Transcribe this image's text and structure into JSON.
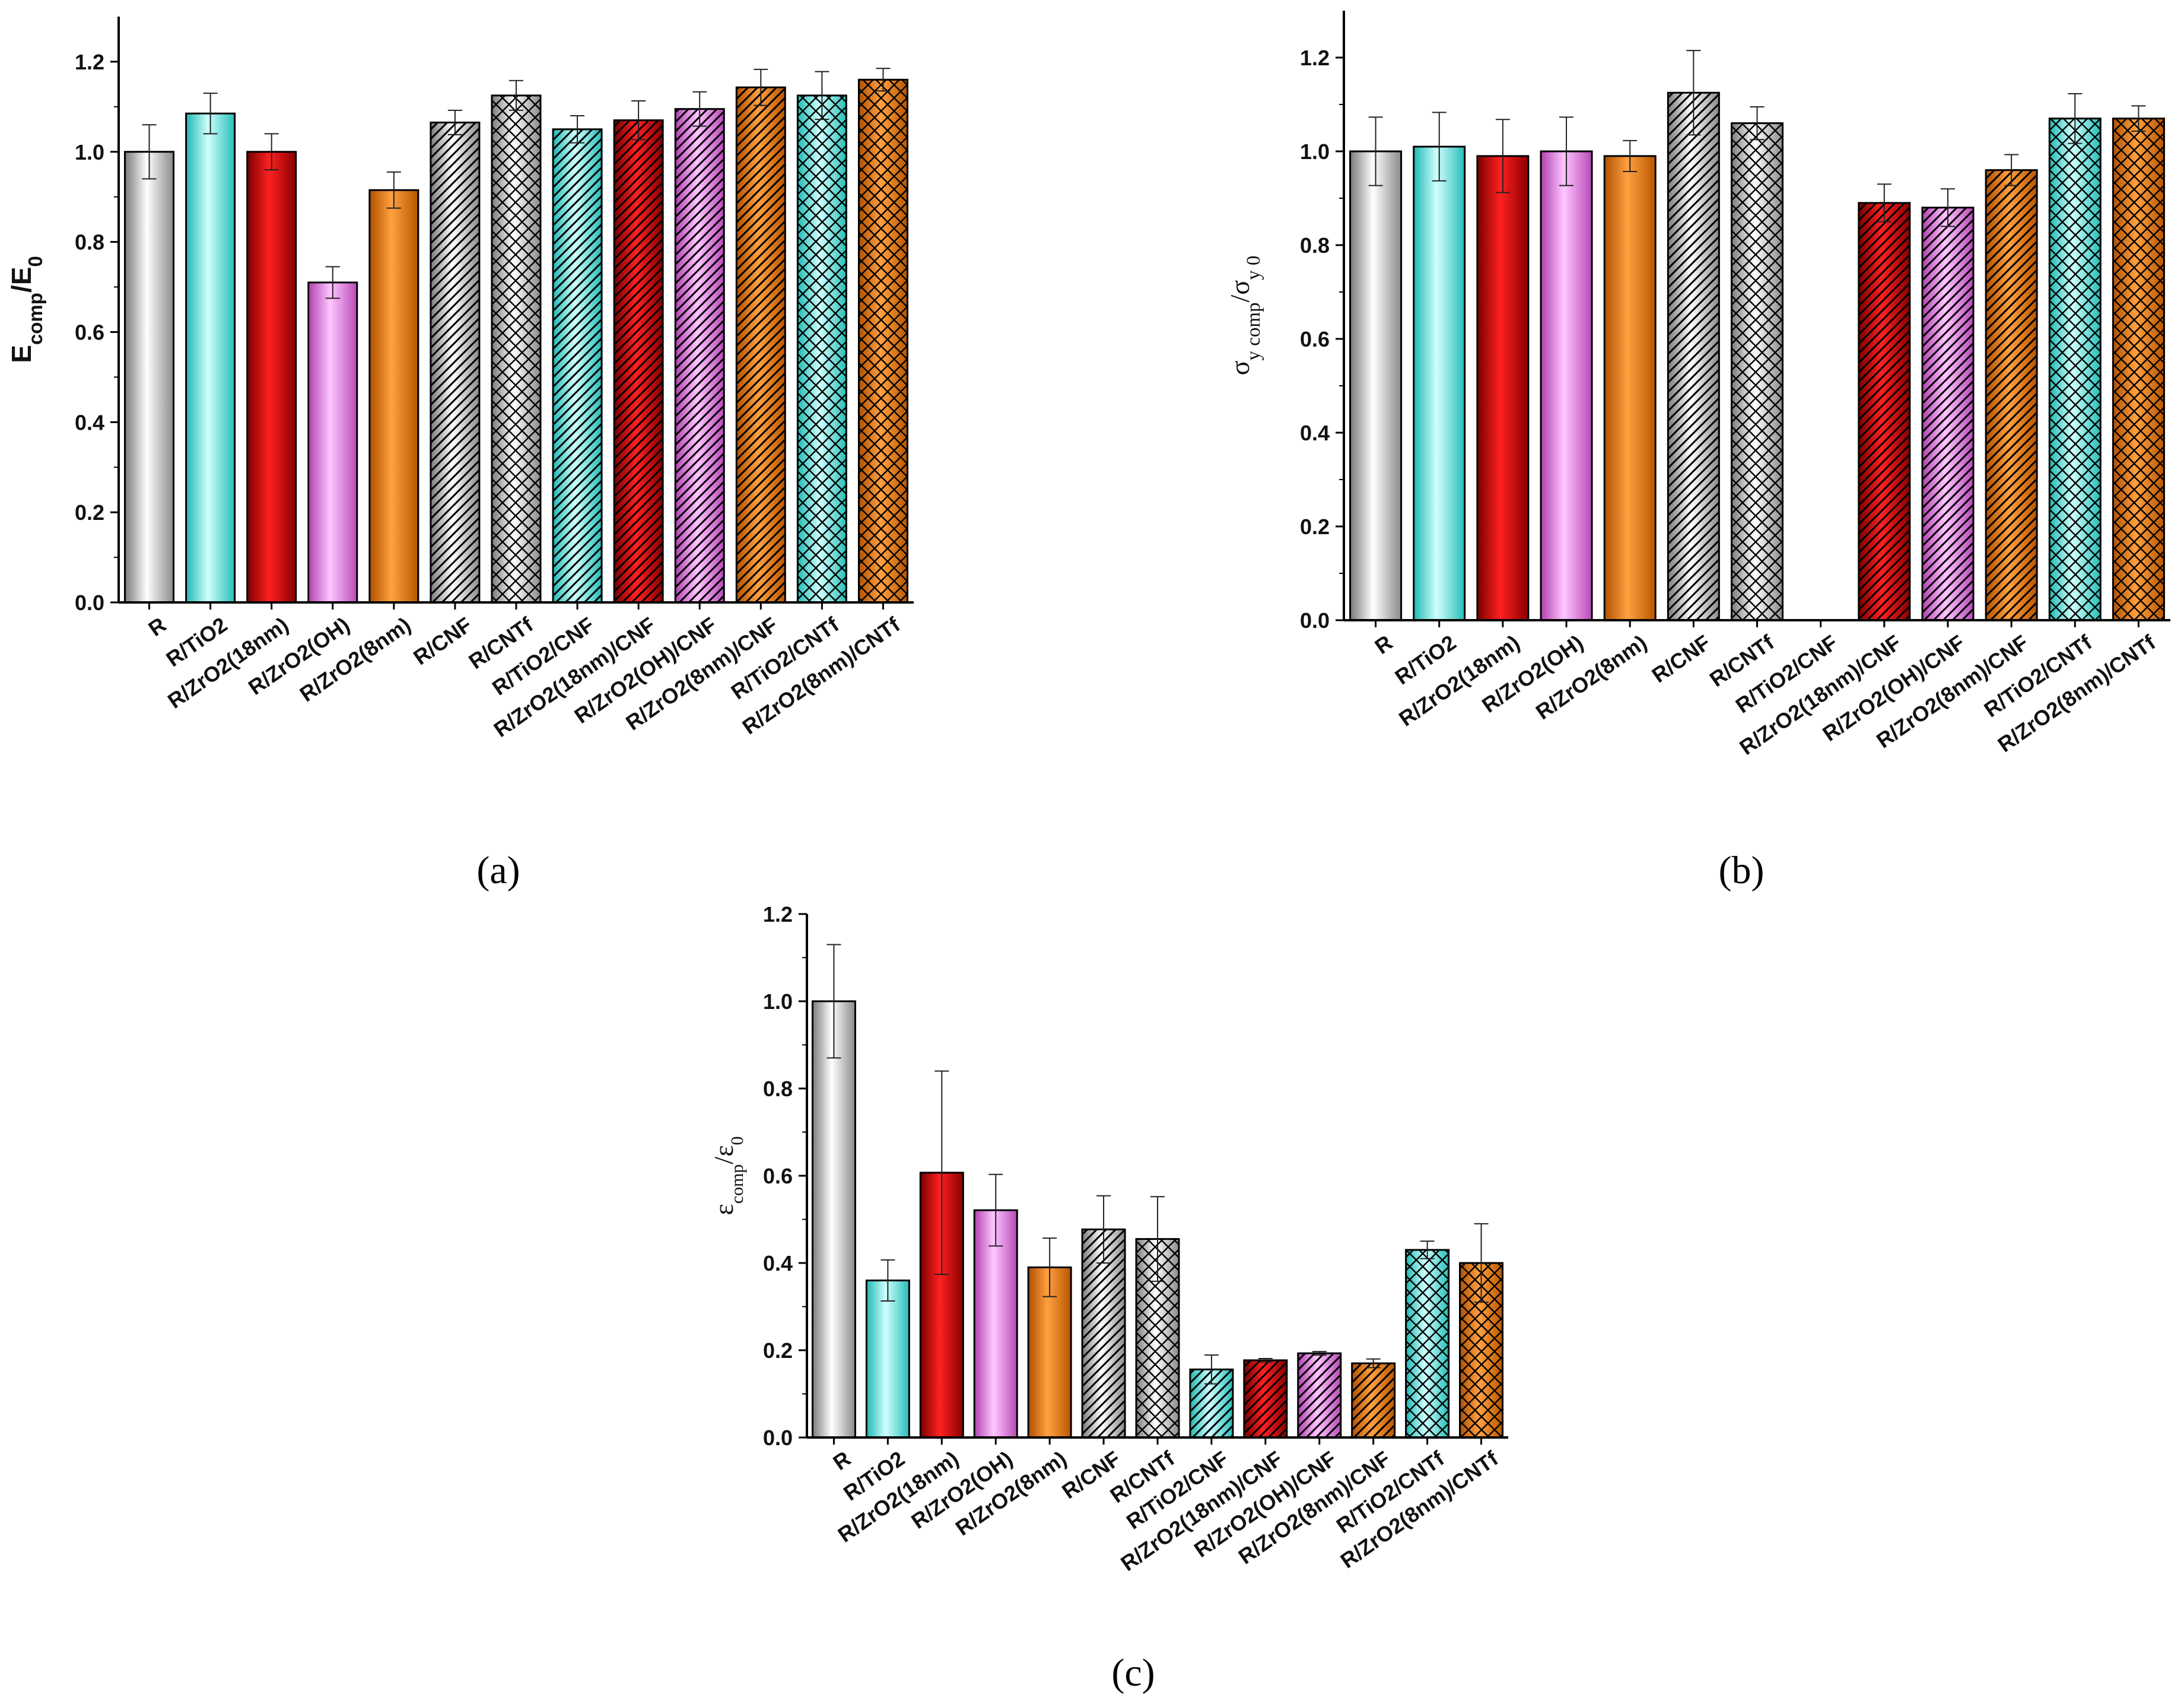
{
  "colors": {
    "white": "#ffffff",
    "cyan": "#5ff2ee",
    "red": "#ee0000",
    "magenta": "#f37ff3",
    "orange": "#ff7f08",
    "axis": "#000000",
    "error": "#222222"
  },
  "chart_data": [
    {
      "id": "a",
      "type": "bar",
      "caption": "(a)",
      "title": "",
      "ylabel": {
        "main": "E",
        "sub": "comp",
        "sep": "/E",
        "sub2": "0"
      },
      "xlabel": "",
      "ylim": [
        0,
        1.3
      ],
      "yticks": [
        "0.0",
        "0.2",
        "0.4",
        "0.6",
        "0.8",
        "1.0",
        "1.2"
      ],
      "grid": false,
      "categories": [
        "R",
        "R/TiO2",
        "R/ZrO2(18nm)",
        "R/ZrO2(OH)",
        "R/ZrO2(8nm)",
        "R/CNF",
        "R/CNTf",
        "R/TiO2/CNF",
        "R/ZrO2(18nm)/CNF",
        "R/ZrO2(OH)/CNF",
        "R/ZrO2(8nm)/CNF",
        "R/TiO2/CNTf",
        "R/ZrO2(8nm)/CNTf"
      ],
      "values": [
        1.0,
        1.085,
        1.0,
        0.71,
        0.915,
        1.065,
        1.125,
        1.05,
        1.07,
        1.095,
        1.143,
        1.125,
        1.16
      ],
      "errors": [
        0.06,
        0.045,
        0.04,
        0.035,
        0.04,
        0.027,
        0.033,
        0.03,
        0.043,
        0.038,
        0.04,
        0.053,
        0.025
      ],
      "fills": [
        "white",
        "cyan",
        "red",
        "magenta",
        "orange",
        "white",
        "white",
        "cyan",
        "red",
        "magenta",
        "orange",
        "cyan",
        "orange"
      ],
      "patterns": [
        "none",
        "none",
        "none",
        "none",
        "none",
        "hatch",
        "cross",
        "hatch",
        "hatch",
        "hatch",
        "hatch",
        "cross",
        "cross"
      ]
    },
    {
      "id": "b",
      "type": "bar",
      "caption": "(b)",
      "title": "",
      "ylabel": {
        "main": "σ",
        "sub": "y comp",
        "sep": "/σ",
        "sub2": "y 0"
      },
      "xlabel": "",
      "ylim": [
        0,
        1.3
      ],
      "yticks": [
        "0.0",
        "0.2",
        "0.4",
        "0.6",
        "0.8",
        "1.0",
        "1.2"
      ],
      "grid": false,
      "categories": [
        "R",
        "R/TiO2",
        "R/ZrO2(18nm)",
        "R/ZrO2(OH)",
        "R/ZrO2(8nm)",
        "R/CNF",
        "R/CNTf",
        "R/TiO2/CNF",
        "R/ZrO2(18nm)/CNF",
        "R/ZrO2(OH)/CNF",
        "R/ZrO2(8nm)/CNF",
        "R/TiO2/CNTf",
        "R/ZrO2(8nm)/CNTf"
      ],
      "values": [
        1.0,
        1.01,
        0.99,
        1.0,
        0.99,
        1.125,
        1.06,
        0,
        0.89,
        0.88,
        0.96,
        1.07,
        1.07
      ],
      "errors": [
        0.073,
        0.073,
        0.078,
        0.073,
        0.033,
        0.09,
        0.035,
        0,
        0.04,
        0.04,
        0.033,
        0.053,
        0.027
      ],
      "fills": [
        "white",
        "cyan",
        "red",
        "magenta",
        "orange",
        "white",
        "white",
        "cyan",
        "red",
        "magenta",
        "orange",
        "cyan",
        "orange"
      ],
      "patterns": [
        "none",
        "none",
        "none",
        "none",
        "none",
        "hatch",
        "cross",
        "hatch",
        "hatch",
        "hatch",
        "hatch",
        "cross",
        "cross"
      ]
    },
    {
      "id": "c",
      "type": "bar",
      "caption": "(c)",
      "title": "",
      "ylabel": {
        "main": "ε",
        "sub": "comp",
        "sep": "/ε",
        "sub2": "0"
      },
      "xlabel": "",
      "ylim": [
        0,
        1.2
      ],
      "yticks": [
        "0.0",
        "0.2",
        "0.4",
        "0.6",
        "0.8",
        "1.0",
        "1.2"
      ],
      "grid": false,
      "categories": [
        "R",
        "R/TiO2",
        "R/ZrO2(18nm)",
        "R/ZrO2(OH)",
        "R/ZrO2(8nm)",
        "R/CNF",
        "R/CNTf",
        "R/TiO2/CNF",
        "R/ZrO2(18nm)/CNF",
        "R/ZrO2(OH)/CNF",
        "R/ZrO2(8nm)/CNF",
        "R/TiO2/CNTf",
        "R/ZrO2(8nm)/CNTf"
      ],
      "values": [
        1.0,
        0.36,
        0.607,
        0.521,
        0.39,
        0.477,
        0.455,
        0.156,
        0.177,
        0.193,
        0.17,
        0.43,
        0.4
      ],
      "errors": [
        0.13,
        0.047,
        0.233,
        0.082,
        0.067,
        0.077,
        0.097,
        0.033,
        0.004,
        0.004,
        0.01,
        0.02,
        0.09
      ],
      "fills": [
        "white",
        "cyan",
        "red",
        "magenta",
        "orange",
        "white",
        "white",
        "cyan",
        "red",
        "magenta",
        "orange",
        "cyan",
        "orange"
      ],
      "patterns": [
        "none",
        "none",
        "none",
        "none",
        "none",
        "hatch",
        "cross",
        "hatch",
        "hatch",
        "hatch",
        "hatch",
        "cross",
        "cross"
      ]
    }
  ]
}
